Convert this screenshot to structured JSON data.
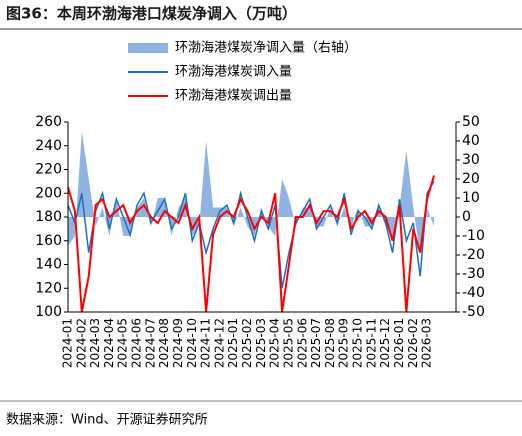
{
  "chart_data": {
    "type": "line",
    "title": "图36：本周环渤海港口煤炭净调入（万吨）",
    "source": "数据来源：Wind、开源证券研究所",
    "categories": [
      "2024-01",
      null,
      "2024-02",
      null,
      "2024-03",
      null,
      "2024-04",
      null,
      "2024-05",
      null,
      "2024-06",
      null,
      "2024-07",
      null,
      "2024-08",
      null,
      "2024-09",
      null,
      "2024-10",
      null,
      "2024-11",
      null,
      "2024-12",
      null,
      "2025-01",
      null,
      "2025-02",
      null,
      "2025-03",
      null,
      "2025-04",
      null,
      "2025-05",
      null,
      "2025-06",
      null,
      "2025-07",
      null,
      "2025-08",
      null,
      "2025-09",
      null,
      "2025-10",
      null,
      "2025-11",
      null,
      "2025-12",
      null,
      "2026-01",
      null,
      "2026-02",
      null,
      "2026-03",
      null
    ],
    "series": [
      {
        "name": "环渤海港煤炭净调入量（右轴）",
        "color": "#8fb4e3",
        "axis": "y2",
        "kind": "area",
        "values": [
          -15,
          -10,
          45,
          20,
          -5,
          5,
          -10,
          10,
          -10,
          -10,
          5,
          10,
          -5,
          10,
          10,
          -10,
          5,
          10,
          -10,
          -5,
          40,
          5,
          5,
          5,
          -5,
          5,
          -5,
          -10,
          5,
          -5,
          -10,
          20,
          10,
          -5,
          5,
          5,
          -5,
          -5,
          5,
          -5,
          5,
          -5,
          5,
          -5,
          -5,
          5,
          -5,
          -10,
          5,
          35,
          5,
          -20,
          5,
          -5
        ]
      },
      {
        "name": "环渤海港煤炭调入量",
        "color": "#1f6fbf",
        "values": [
          190,
          175,
          200,
          150,
          185,
          200,
          170,
          195,
          180,
          165,
          190,
          200,
          175,
          185,
          195,
          170,
          180,
          200,
          160,
          175,
          150,
          170,
          185,
          190,
          175,
          200,
          180,
          160,
          185,
          170,
          190,
          120,
          150,
          175,
          185,
          195,
          170,
          180,
          190,
          175,
          200,
          165,
          185,
          180,
          170,
          190,
          175,
          150,
          195,
          160,
          175,
          130,
          200,
          210
        ]
      },
      {
        "name": "环渤海港煤炭调出量",
        "color": "#ff0000",
        "values": [
          205,
          185,
          100,
          130,
          190,
          195,
          180,
          185,
          190,
          175,
          185,
          190,
          180,
          175,
          185,
          180,
          175,
          190,
          170,
          180,
          100,
          165,
          180,
          185,
          180,
          195,
          185,
          170,
          180,
          175,
          200,
          100,
          140,
          180,
          180,
          190,
          175,
          185,
          185,
          180,
          195,
          170,
          180,
          185,
          175,
          185,
          180,
          160,
          190,
          100,
          170,
          150,
          195,
          215
        ]
      }
    ],
    "ylim": [
      100,
      260
    ],
    "yticks": [
      100,
      120,
      140,
      160,
      180,
      200,
      220,
      240,
      260
    ],
    "y2lim": [
      -50,
      50
    ],
    "y2ticks": [
      -50,
      -40,
      -30,
      -20,
      -10,
      0,
      10,
      20,
      30,
      40,
      50
    ]
  }
}
